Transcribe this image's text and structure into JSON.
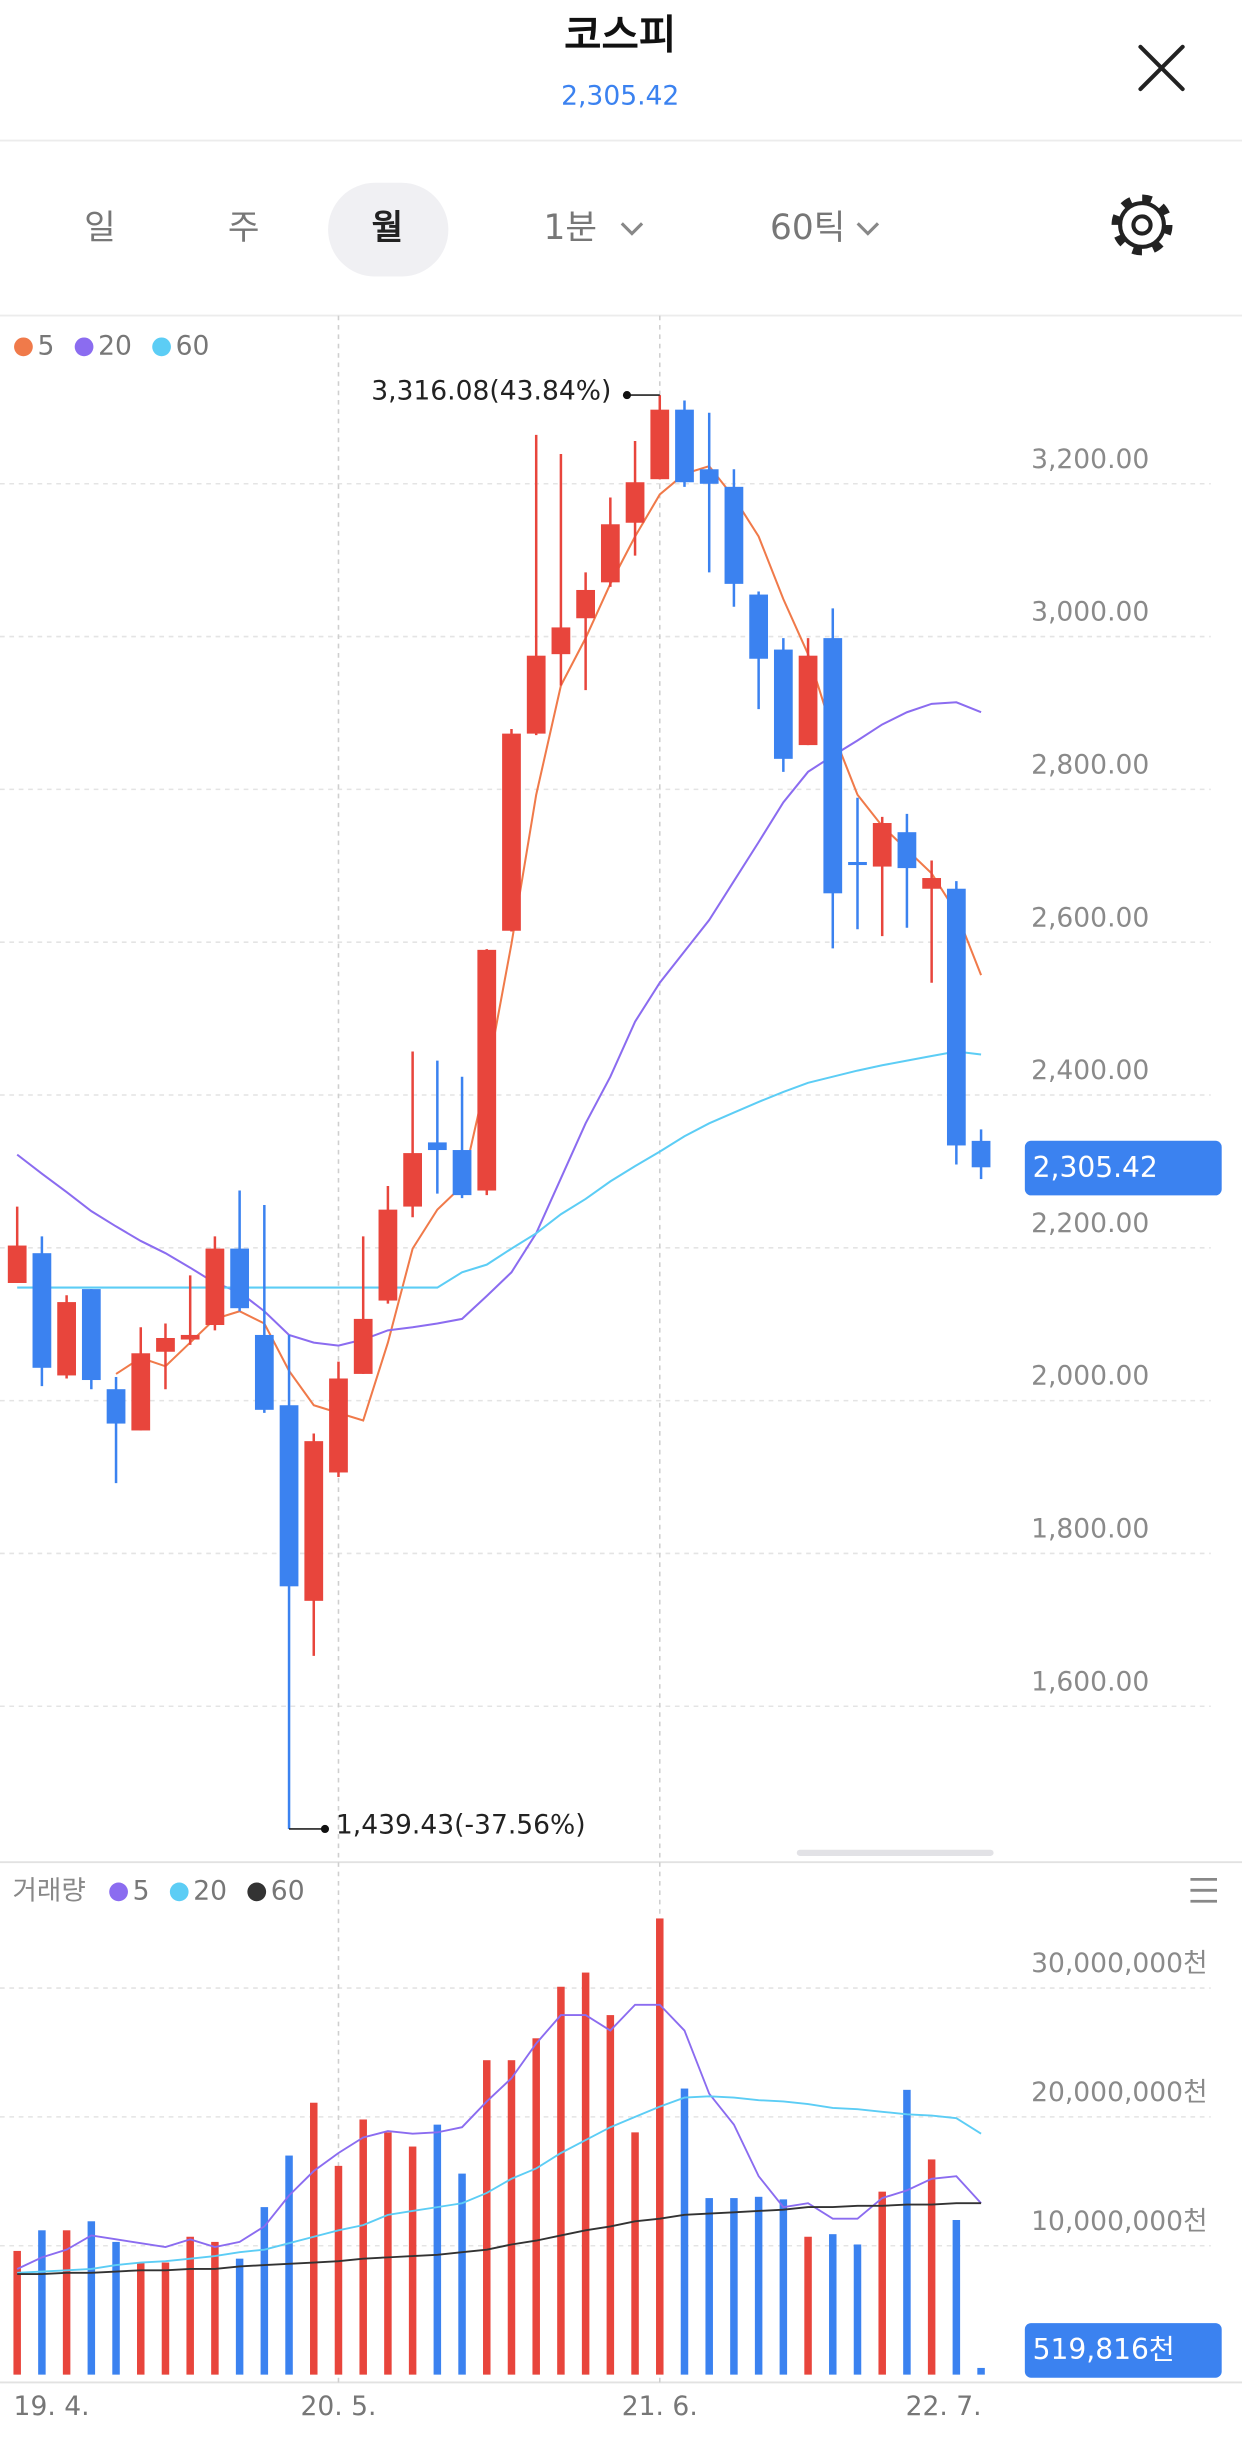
{
  "header": {
    "title": "코스피",
    "price": "2,305.42"
  },
  "tabs": [
    "일",
    "주",
    "월",
    "1분",
    "60틱"
  ],
  "selected_tab": 2,
  "chart_data": [
    {
      "type": "candlestick",
      "categories": [
        "19. 4.",
        null,
        null,
        null,
        null,
        null,
        null,
        null,
        null,
        null,
        null,
        null,
        null,
        "20. 5.",
        null,
        null,
        null,
        null,
        null,
        null,
        null,
        null,
        null,
        null,
        null,
        null,
        "21. 6.",
        null,
        null,
        null,
        null,
        null,
        null,
        null,
        null,
        null,
        null,
        null,
        null,
        "22. 7."
      ],
      "open": [
        2154,
        2193,
        2033,
        2146,
        2015,
        1961,
        2064,
        2080,
        2099,
        2199,
        2086,
        1994,
        1738,
        1906,
        2035,
        2131,
        2254,
        2338,
        2328,
        2275,
        2615,
        2873,
        2977,
        3024,
        3071,
        3149,
        3206,
        3297,
        3219,
        3196,
        3055,
        2983,
        2858,
        2998,
        2705,
        2699,
        2744,
        2670,
        2670,
        2340
      ],
      "high": [
        2254,
        2215,
        2138,
        2146,
        2031,
        2096,
        2101,
        2164,
        2215,
        2275,
        2256,
        2086,
        1957,
        2051,
        2215,
        2281,
        2457,
        2445,
        2424,
        2591,
        2879,
        3264,
        3239,
        3084,
        3182,
        3256,
        3316.08,
        3309,
        3293,
        3219,
        3059,
        2998,
        2998,
        3037,
        2789,
        2764,
        2768,
        2707,
        2680,
        2355
      ],
      "low": [
        2154,
        2019,
        2029,
        2015,
        1892,
        1961,
        2015,
        2073,
        2092,
        2117,
        1984,
        1439.43,
        1666,
        1900,
        2035,
        2127,
        2240,
        2271,
        2265,
        2269,
        2614,
        2871,
        2936,
        2930,
        3065,
        3106,
        3206,
        3196,
        3084,
        3039,
        2905,
        2823,
        2858,
        2592,
        2617,
        2608,
        2619,
        2547,
        2309,
        2290
      ],
      "close": [
        2203,
        2043,
        2129,
        2027,
        1970,
        2062,
        2082,
        2086,
        2199,
        2121,
        1988,
        1757,
        1947,
        2029,
        2107,
        2250,
        2324,
        2328,
        2269,
        2590,
        2873,
        2975,
        3012,
        3061,
        3147,
        3202,
        3297,
        3202,
        3200,
        3069,
        2971,
        2840,
        2975,
        2664,
        2701,
        2756,
        2697,
        2684,
        2334,
        2305.42
      ],
      "value_labels": [
        null,
        null,
        null,
        null,
        null,
        null,
        null,
        null,
        null,
        null,
        null,
        null,
        null,
        null,
        null,
        null,
        null,
        null,
        null,
        null,
        null,
        null,
        null,
        null,
        null,
        null,
        null,
        null,
        null,
        null,
        null,
        null,
        null,
        null,
        null,
        null,
        null,
        null,
        null,
        "2,305.42"
      ],
      "up_color": "#e8453c",
      "down_color": "#3b82f0",
      "lines": [
        {
          "name": "5",
          "color": "#f07a4a",
          "values": [
            null,
            null,
            null,
            null,
            2035,
            2056,
            2045,
            2076,
            2107,
            2117,
            2101,
            2039,
            1994,
            1984,
            1974,
            2076,
            2199,
            2250,
            2281,
            2424,
            2598,
            2793,
            2936,
            2998,
            3069,
            3131,
            3186,
            3213,
            3223,
            3182,
            3131,
            3049,
            2977,
            2875,
            2793,
            2752,
            2721,
            2690,
            2639,
            2557
          ]
        },
        {
          "name": "20",
          "color": "#8b6cf0",
          "values": [
            2322,
            2297,
            2273,
            2248,
            2228,
            2209,
            2193,
            2174,
            2154,
            2142,
            2117,
            2086,
            2076,
            2072,
            2080,
            2092,
            2096,
            2101,
            2107,
            2137,
            2168,
            2219,
            2291,
            2363,
            2424,
            2496,
            2547,
            2588,
            2629,
            2680,
            2731,
            2783,
            2823,
            2844,
            2864,
            2885,
            2901,
            2912,
            2914,
            2901
          ]
        },
        {
          "name": "60",
          "color": "#5ccdf5",
          "values": [
            2148,
            2148,
            2148,
            2148,
            2148,
            2148,
            2148,
            2148,
            2148,
            2148,
            2148,
            2148,
            2148,
            2148,
            2148,
            2148,
            2148,
            2148,
            2168,
            2178,
            2199,
            2219,
            2244,
            2264,
            2287,
            2307,
            2326,
            2346,
            2363,
            2377,
            2391,
            2404,
            2416,
            2424,
            2432,
            2439,
            2445,
            2451,
            2457,
            2453
          ]
        }
      ],
      "max_label": "3,316.08(43.84%)",
      "min_label": "1,439.43(-37.56%)",
      "ylim": [
        1400,
        3414
      ],
      "yticks": [
        {
          "value": 1600,
          "label": "1,600.00"
        },
        {
          "value": 1800,
          "label": "1,800.00"
        },
        {
          "value": 2000,
          "label": "2,000.00"
        },
        {
          "value": 2200,
          "label": "2,200.00"
        },
        {
          "value": 2400,
          "label": "2,400.00"
        },
        {
          "value": 2600,
          "label": "2,600.00"
        },
        {
          "value": 2800,
          "label": "2,800.00"
        },
        {
          "value": 3000,
          "label": "3,000.00"
        },
        {
          "value": 3200,
          "label": "3,200.00"
        }
      ],
      "grid": true
    },
    {
      "type": "bar",
      "title": "거래량",
      "values": [
        9600000,
        11200000,
        11200000,
        11900000,
        10300000,
        8700000,
        8700000,
        10700000,
        10300000,
        9000000,
        13000000,
        17000000,
        21100000,
        16200000,
        19800000,
        18800000,
        17700000,
        19400000,
        15600000,
        24400000,
        24400000,
        26100000,
        30100000,
        31200000,
        27900000,
        18800000,
        35400000,
        22200000,
        13700000,
        13700000,
        13800000,
        13600000,
        10700000,
        10900000,
        10100000,
        14200000,
        22100000,
        16700000,
        12000000,
        519816
      ],
      "value_labels": [
        null,
        null,
        null,
        null,
        null,
        null,
        null,
        null,
        null,
        null,
        null,
        null,
        null,
        null,
        null,
        null,
        null,
        null,
        null,
        null,
        null,
        null,
        null,
        null,
        null,
        null,
        null,
        null,
        null,
        null,
        null,
        null,
        null,
        null,
        null,
        null,
        null,
        null,
        null,
        "519,816천"
      ],
      "series": [
        {
          "name": "5",
          "color": "#8b6cf0",
          "values": [
            8200000,
            9100000,
            9700000,
            10800000,
            10500000,
            10200000,
            9900000,
            10500000,
            9900000,
            10300000,
            11500000,
            13900000,
            15800000,
            17200000,
            18400000,
            18900000,
            18700000,
            18800000,
            19200000,
            21200000,
            23000000,
            25700000,
            27900000,
            27900000,
            26700000,
            28700000,
            28700000,
            26700000,
            21800000,
            19400000,
            15400000,
            13000000,
            13300000,
            12100000,
            12100000,
            13700000,
            14300000,
            15200000,
            15400000,
            13300000
          ]
        },
        {
          "name": "20",
          "color": "#5ccdf5",
          "values": [
            7900000,
            8000000,
            8100000,
            8200000,
            8500000,
            8700000,
            8800000,
            9000000,
            9200000,
            9500000,
            9700000,
            10200000,
            10700000,
            11200000,
            11600000,
            12400000,
            12700000,
            13000000,
            13300000,
            14100000,
            15200000,
            16000000,
            17200000,
            18200000,
            19200000,
            20000000,
            20800000,
            21500000,
            21600000,
            21500000,
            21300000,
            21200000,
            21000000,
            20700000,
            20600000,
            20400000,
            20200000,
            20100000,
            19900000,
            18700000
          ]
        },
        {
          "name": "60",
          "color": "#333333",
          "values": [
            7800000,
            7800000,
            7900000,
            7900000,
            8000000,
            8100000,
            8100000,
            8200000,
            8200000,
            8400000,
            8500000,
            8600000,
            8700000,
            8800000,
            9000000,
            9100000,
            9200000,
            9300000,
            9500000,
            9700000,
            10100000,
            10400000,
            10800000,
            11200000,
            11500000,
            11900000,
            12100000,
            12400000,
            12500000,
            12600000,
            12700000,
            12800000,
            13000000,
            13000000,
            13100000,
            13100000,
            13200000,
            13200000,
            13300000,
            13300000
          ]
        }
      ],
      "ylim": [
        0,
        39400000
      ],
      "yticks": [
        {
          "value": 10000000,
          "label": "10,000,000천"
        },
        {
          "value": 20000000,
          "label": "20,000,000천"
        },
        {
          "value": 30000000,
          "label": "30,000,000천"
        }
      ],
      "grid": true
    }
  ]
}
